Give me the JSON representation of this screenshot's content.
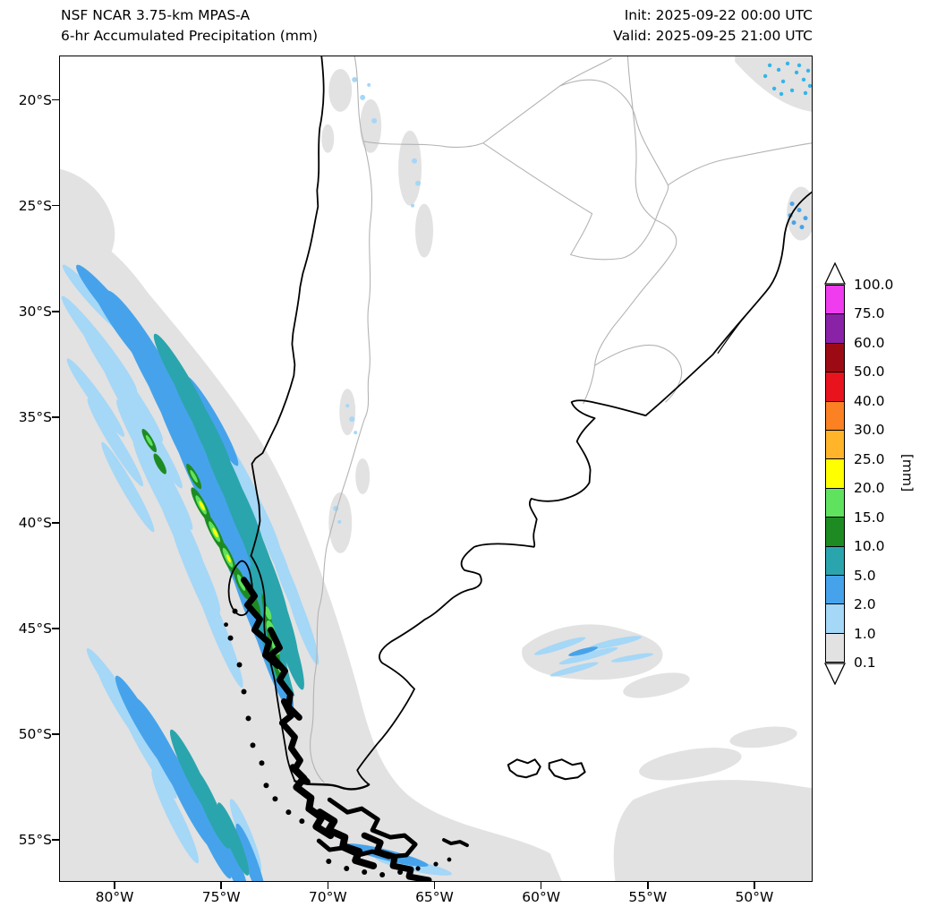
{
  "header": {
    "model_line": "NSF NCAR 3.75-km MPAS-A",
    "product_line": "6-hr Accumulated Precipitation (mm)",
    "init": "Init: 2025-09-22 00:00 UTC",
    "valid": "Valid: 2025-09-25 21:00 UTC"
  },
  "axes": {
    "lat_ticks": [
      "20°S",
      "25°S",
      "30°S",
      "35°S",
      "40°S",
      "45°S",
      "50°S",
      "55°S"
    ],
    "lon_ticks": [
      "80°W",
      "75°W",
      "70°W",
      "65°W",
      "60°W",
      "55°W",
      "50°W"
    ]
  },
  "colorbar": {
    "unit": "[mm]",
    "levels": [
      "100.0",
      "75.0",
      "60.0",
      "50.0",
      "40.0",
      "30.0",
      "25.0",
      "20.0",
      "15.0",
      "10.0",
      "5.0",
      "2.0",
      "1.0",
      "0.1"
    ],
    "band_colors": [
      "#ee3cee",
      "#8a22a8",
      "#9c0b13",
      "#e8131d",
      "#fb8122",
      "#ffb42a",
      "#ffff00",
      "#5fe35f",
      "#1d8b22",
      "#2aa5ad",
      "#46a3eb",
      "#a5d7f7",
      "#e2e2e2"
    ],
    "over_arrow_color": "#ffffff",
    "under_arrow_color": "#ffffff"
  },
  "chart_data": {
    "type": "map",
    "title": "NSF NCAR 3.75-km MPAS-A — 6-hr Accumulated Precipitation (mm)",
    "init_time": "2025-09-22 00:00 UTC",
    "valid_time": "2025-09-25 21:00 UTC",
    "units": "mm",
    "lon_range_deg_west": [
      82.6,
      47.2
    ],
    "lat_range_deg_south": [
      17.9,
      57.0
    ],
    "contour_levels_mm": [
      0.1,
      1.0,
      2.0,
      5.0,
      10.0,
      15.0,
      20.0,
      25.0,
      30.0,
      40.0,
      50.0,
      60.0,
      75.0,
      100.0
    ],
    "region": "Southern South America (Chile, Argentina, Patagonia) and adjacent SE Pacific / SW Atlantic",
    "features": [
      "Broad area of light precipitation (0.1–1 mm) covering much of the SE Pacific southwest of Chile",
      "NW–SE oriented banded streaks of 1–10 mm over the Pacific between about 28°S and 50°S",
      "Embedded cells of 10–25 mm within the offshore bands near 38–42°S",
      "Heaviest totals (10–30 mm) hugging the Chilean coast and Andes near 42–48°S with a small 25–30 mm maximum near 45°S",
      "Blue streaks of 2–10 mm in the far southwest corner near 50–56°S",
      "Light 1–5 mm streaks over the Atlantic near 46–48°S, 56–62°W and south of Tierra del Fuego",
      "Scattered 1–5 mm showers near the Brazilian coast in the northeast corner and along the coast near 25°S"
    ]
  }
}
